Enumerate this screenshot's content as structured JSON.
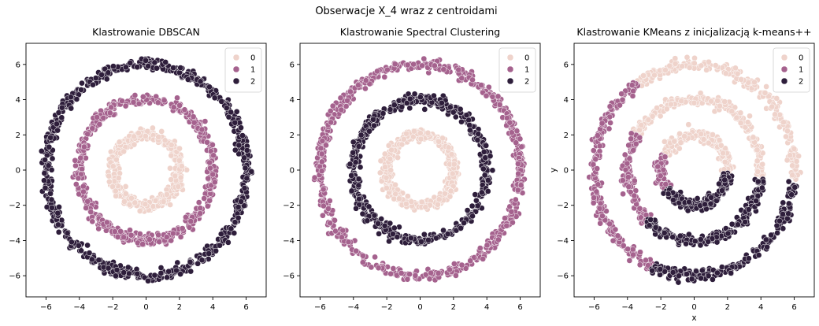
{
  "figure": {
    "suptitle": "Obserwacje X_4 wraz z centroidami"
  },
  "palette": {
    "0": "#efd3cb",
    "1": "#a5628e",
    "2": "#2e1e3b"
  },
  "chart_data": [
    {
      "type": "scatter",
      "title": "Klastrowanie DBSCAN",
      "xlabel": "",
      "ylabel": "",
      "xlim": [
        -7.2,
        7.2
      ],
      "ylim": [
        -7.2,
        7.2
      ],
      "xticks": [
        -6,
        -4,
        -2,
        0,
        2,
        4,
        6
      ],
      "yticks": [
        -6,
        -4,
        -2,
        0,
        2,
        4,
        6
      ],
      "legend": {
        "position": "top-right",
        "entries": [
          "0",
          "1",
          "2"
        ]
      },
      "series": [
        {
          "name": "0",
          "shape": "ring",
          "radius": 2,
          "points": 450
        },
        {
          "name": "1",
          "shape": "ring",
          "radius": 4,
          "points": 550
        },
        {
          "name": "2",
          "shape": "ring",
          "radius": 6,
          "points": 650
        }
      ]
    },
    {
      "type": "scatter",
      "title": "Klastrowanie Spectral Clustering",
      "xlabel": "",
      "ylabel": "",
      "xlim": [
        -7.2,
        7.2
      ],
      "ylim": [
        -7.2,
        7.2
      ],
      "xticks": [
        -6,
        -4,
        -2,
        0,
        2,
        4,
        6
      ],
      "yticks": [
        -6,
        -4,
        -2,
        0,
        2,
        4,
        6
      ],
      "legend": {
        "position": "top-right",
        "entries": [
          "0",
          "1",
          "2"
        ]
      },
      "series": [
        {
          "name": "0",
          "shape": "ring",
          "radius": 2,
          "points": 450
        },
        {
          "name": "2",
          "shape": "ring",
          "radius": 4,
          "points": 550
        },
        {
          "name": "1",
          "shape": "ring",
          "radius": 6,
          "points": 650
        }
      ]
    },
    {
      "type": "scatter",
      "title": "Klastrowanie KMeans z inicjalizacją k-means++",
      "xlabel": "x",
      "ylabel": "y",
      "xlim": [
        -7.2,
        7.2
      ],
      "ylim": [
        -7.2,
        7.2
      ],
      "xticks": [
        -6,
        -4,
        -2,
        0,
        2,
        4,
        6
      ],
      "yticks": [
        -6,
        -4,
        -2,
        0,
        2,
        4,
        6
      ],
      "legend": {
        "position": "top-right",
        "entries": [
          "0",
          "1",
          "2"
        ]
      },
      "series": [
        {
          "name": "0",
          "shape": "ring-arc",
          "radius": 2,
          "angle_deg": [
            -5,
            155
          ],
          "points": 450
        },
        {
          "name": "1",
          "shape": "ring-arc",
          "radius": 2,
          "angle_deg": [
            155,
            215
          ],
          "points": 450
        },
        {
          "name": "2",
          "shape": "ring-arc",
          "radius": 2,
          "angle_deg": [
            215,
            355
          ],
          "points": 450
        },
        {
          "name": "0",
          "shape": "ring-arc",
          "radius": 4,
          "angle_deg": [
            -5,
            150
          ],
          "points": 550
        },
        {
          "name": "1",
          "shape": "ring-arc",
          "radius": 4,
          "angle_deg": [
            150,
            225
          ],
          "points": 550
        },
        {
          "name": "2",
          "shape": "ring-arc",
          "radius": 4,
          "angle_deg": [
            225,
            355
          ],
          "points": 550
        },
        {
          "name": "0",
          "shape": "ring-arc",
          "radius": 6,
          "angle_deg": [
            -5,
            125
          ],
          "points": 650
        },
        {
          "name": "1",
          "shape": "ring-arc",
          "radius": 6,
          "angle_deg": [
            125,
            245
          ],
          "points": 650
        },
        {
          "name": "2",
          "shape": "ring-arc",
          "radius": 6,
          "angle_deg": [
            245,
            355
          ],
          "points": 650
        }
      ]
    }
  ]
}
